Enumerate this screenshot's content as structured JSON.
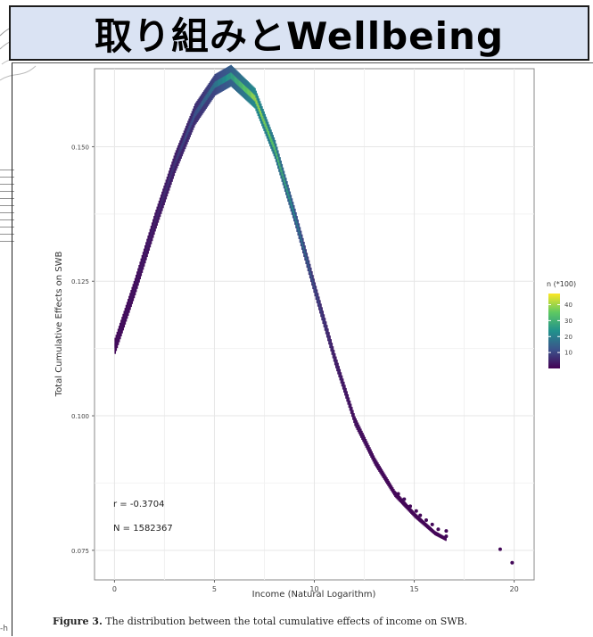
{
  "slide": {
    "title": "取り組みとWellbeing"
  },
  "figure": {
    "caption_label": "Figure 3.",
    "caption_text": "The distribution between the total cumulative effects of income on SWB.",
    "footer_fragment": "-h"
  },
  "chart_data": {
    "type": "scatter",
    "title": "",
    "xlabel": "Income (Natural Logarithm)",
    "ylabel": "Total Cumulative Effects on SWB",
    "xlim": [
      -1,
      21
    ],
    "ylim": [
      0.0695,
      0.1645
    ],
    "x_ticks": [
      0,
      5,
      10,
      15,
      20
    ],
    "x_tick_labels": [
      "0",
      "5",
      "10",
      "15",
      "20"
    ],
    "y_ticks": [
      0.075,
      0.1,
      0.125,
      0.15
    ],
    "y_tick_labels": [
      "0.075",
      "0.100",
      "0.125",
      "0.150"
    ],
    "grid": true,
    "legend": {
      "title": "n (*100)",
      "position": "right",
      "type": "colorbar",
      "ticks": [
        10,
        20,
        30,
        40
      ],
      "tick_labels": [
        "10",
        "20",
        "30",
        "40"
      ],
      "range": [
        0,
        47
      ]
    },
    "colors": {
      "low": "#440154",
      "mid": "#21918c",
      "high": "#fde725"
    },
    "annotations": [
      {
        "id": "r",
        "text": "r = -0.3704"
      },
      {
        "id": "n",
        "text": "N = 1582367"
      }
    ],
    "curve": {
      "x": [
        0,
        1,
        2,
        3,
        4,
        5,
        5.8,
        7,
        8,
        9,
        10,
        11,
        12,
        13,
        14,
        15,
        16,
        16.6
      ],
      "y_center": [
        0.113,
        0.124,
        0.136,
        0.147,
        0.156,
        0.1615,
        0.1632,
        0.159,
        0.1495,
        0.137,
        0.1235,
        0.1105,
        0.099,
        0.0915,
        0.0855,
        0.0815,
        0.0782,
        0.077
      ],
      "band_width": [
        0.003,
        0.0032,
        0.0035,
        0.0038,
        0.004,
        0.004,
        0.004,
        0.0038,
        0.0035,
        0.003,
        0.0026,
        0.0022,
        0.0018,
        0.0015,
        0.0012,
        0.001,
        0.0008,
        0.0007
      ],
      "n_100": [
        2,
        3,
        5,
        8,
        12,
        18,
        26,
        40,
        34,
        22,
        12,
        6,
        3,
        2,
        1,
        1,
        1,
        1
      ]
    },
    "scatter_points": [
      {
        "x": 14.2,
        "y": 0.0855,
        "n_100": 1
      },
      {
        "x": 14.5,
        "y": 0.0845,
        "n_100": 2
      },
      {
        "x": 14.8,
        "y": 0.0832,
        "n_100": 1
      },
      {
        "x": 15.1,
        "y": 0.0823,
        "n_100": 1
      },
      {
        "x": 15.3,
        "y": 0.0815,
        "n_100": 1
      },
      {
        "x": 15.6,
        "y": 0.0806,
        "n_100": 1
      },
      {
        "x": 15.9,
        "y": 0.0798,
        "n_100": 1
      },
      {
        "x": 16.2,
        "y": 0.0789,
        "n_100": 1
      },
      {
        "x": 16.6,
        "y": 0.0776,
        "n_100": 1
      },
      {
        "x": 16.6,
        "y": 0.0786,
        "n_100": 1
      },
      {
        "x": 19.3,
        "y": 0.0752,
        "n_100": 1
      },
      {
        "x": 19.9,
        "y": 0.0727,
        "n_100": 1
      }
    ]
  }
}
